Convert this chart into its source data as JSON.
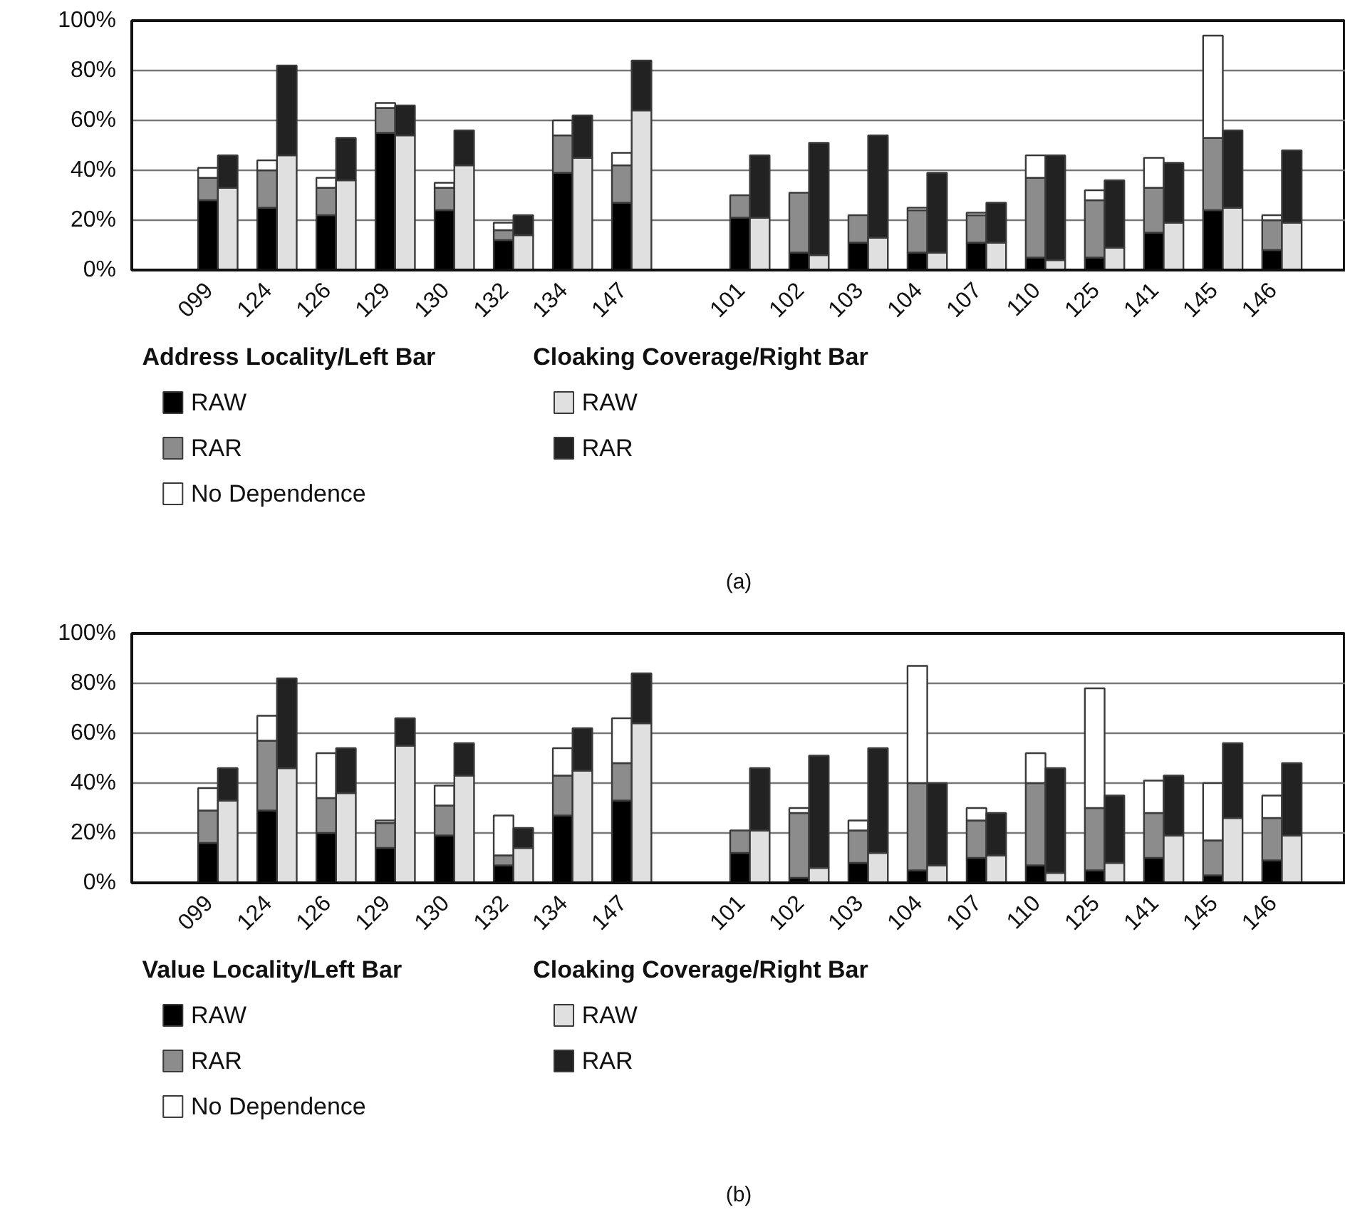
{
  "chart_data": [
    {
      "type": "bar",
      "stacked": true,
      "categories": [
        "099",
        null,
        null,
        "124",
        null,
        null,
        "126",
        null,
        null,
        "129",
        null,
        null,
        "130",
        null,
        null,
        "132",
        null,
        null,
        "134",
        null,
        null,
        "147",
        null,
        null,
        null,
        null,
        null,
        "101",
        null,
        null,
        "102",
        null,
        null,
        "103",
        null,
        null,
        "104",
        null,
        null,
        "107",
        null,
        null,
        "110",
        null,
        null,
        "125",
        null,
        null,
        "141",
        null,
        null,
        "145",
        null,
        null,
        "146",
        null,
        null
      ],
      "ylim": [
        0,
        100
      ],
      "yticks": [
        {
          "value": 0,
          "label": "0%"
        },
        {
          "value": 20,
          "label": "20%"
        },
        {
          "value": 40,
          "label": "40%"
        },
        {
          "value": 60,
          "label": "60%"
        },
        {
          "value": 80,
          "label": "80%"
        },
        {
          "value": 100,
          "label": "100%"
        }
      ],
      "grid": "y",
      "legend": "bottom",
      "legend_title": [
        "Address Locality/Left Bar",
        "Cloaking Coverage/Right Bar"
      ],
      "annotations": [
        "(a)"
      ],
      "series": [
        {
          "name": "RAW",
          "color": "#000000",
          "values": [
            28,
            null,
            null,
            25,
            null,
            null,
            22,
            null,
            null,
            55,
            null,
            null,
            24,
            null,
            null,
            12,
            null,
            null,
            39,
            null,
            null,
            27,
            null,
            null,
            null,
            null,
            null,
            21,
            null,
            null,
            7,
            null,
            null,
            11,
            null,
            null,
            7,
            null,
            null,
            11,
            null,
            null,
            5,
            null,
            null,
            5,
            null,
            null,
            15,
            null,
            null,
            24,
            null,
            null,
            8,
            null,
            null
          ]
        },
        {
          "name": "RAR",
          "color": "#8c8c8c",
          "values": [
            9,
            null,
            null,
            15,
            null,
            null,
            11,
            null,
            null,
            10,
            null,
            null,
            9,
            null,
            null,
            4,
            null,
            null,
            15,
            null,
            null,
            15,
            null,
            null,
            null,
            null,
            null,
            9,
            null,
            null,
            24,
            null,
            null,
            11,
            null,
            null,
            17,
            null,
            null,
            11,
            null,
            null,
            32,
            null,
            null,
            23,
            null,
            null,
            18,
            null,
            null,
            29,
            null,
            null,
            12,
            null,
            null
          ]
        },
        {
          "name": "No Dependence",
          "color": "#ffffff",
          "values": [
            4,
            null,
            null,
            4,
            null,
            null,
            4,
            null,
            null,
            2,
            null,
            null,
            2,
            null,
            null,
            3,
            null,
            null,
            6,
            null,
            null,
            5,
            null,
            null,
            null,
            null,
            null,
            null,
            null,
            null,
            null,
            null,
            null,
            null,
            null,
            null,
            1,
            null,
            null,
            1,
            null,
            null,
            9,
            null,
            null,
            4,
            null,
            null,
            12,
            null,
            null,
            41,
            null,
            null,
            2,
            null,
            null
          ]
        },
        {
          "name": "RAW",
          "color": "#e0e0e0",
          "values": [
            null,
            33,
            null,
            null,
            46,
            null,
            null,
            36,
            null,
            null,
            54,
            null,
            null,
            42,
            null,
            null,
            14,
            null,
            null,
            45,
            null,
            null,
            64,
            null,
            null,
            null,
            null,
            null,
            21,
            null,
            null,
            6,
            null,
            null,
            13,
            null,
            null,
            7,
            null,
            null,
            11,
            null,
            null,
            4,
            null,
            null,
            9,
            null,
            null,
            19,
            null,
            null,
            25,
            null,
            null,
            19,
            null
          ]
        },
        {
          "name": "RAR",
          "color": "#222222",
          "values": [
            null,
            13,
            null,
            null,
            36,
            null,
            null,
            17,
            null,
            null,
            12,
            null,
            null,
            14,
            null,
            null,
            8,
            null,
            null,
            17,
            null,
            null,
            20,
            null,
            null,
            null,
            null,
            null,
            25,
            null,
            null,
            45,
            null,
            null,
            41,
            null,
            null,
            32,
            null,
            null,
            16,
            null,
            null,
            42,
            null,
            null,
            27,
            null,
            null,
            24,
            null,
            null,
            31,
            null,
            null,
            29,
            null
          ]
        }
      ]
    },
    {
      "type": "bar",
      "stacked": true,
      "categories": [
        "099",
        null,
        null,
        "124",
        null,
        null,
        "126",
        null,
        null,
        "129",
        null,
        null,
        "130",
        null,
        null,
        "132",
        null,
        null,
        "134",
        null,
        null,
        "147",
        null,
        null,
        null,
        null,
        null,
        "101",
        null,
        null,
        "102",
        null,
        null,
        "103",
        null,
        null,
        "104",
        null,
        null,
        "107",
        null,
        null,
        "110",
        null,
        null,
        "125",
        null,
        null,
        "141",
        null,
        null,
        "145",
        null,
        null,
        "146",
        null,
        null
      ],
      "ylim": [
        0,
        100
      ],
      "yticks": [
        {
          "value": 0,
          "label": "0%"
        },
        {
          "value": 20,
          "label": "20%"
        },
        {
          "value": 40,
          "label": "40%"
        },
        {
          "value": 60,
          "label": "60%"
        },
        {
          "value": 80,
          "label": "80%"
        },
        {
          "value": 100,
          "label": "100%"
        }
      ],
      "grid": "y",
      "legend": "bottom",
      "legend_title": [
        "Value Locality/Left Bar",
        "Cloaking Coverage/Right Bar"
      ],
      "annotations": [
        "(b)"
      ],
      "series": [
        {
          "name": "RAW",
          "color": "#000000",
          "values": [
            16,
            null,
            null,
            29,
            null,
            null,
            20,
            null,
            null,
            14,
            null,
            null,
            19,
            null,
            null,
            7,
            null,
            null,
            27,
            null,
            null,
            33,
            null,
            null,
            null,
            null,
            null,
            12,
            null,
            null,
            2,
            null,
            null,
            8,
            null,
            null,
            5,
            null,
            null,
            10,
            null,
            null,
            7,
            null,
            null,
            5,
            null,
            null,
            10,
            null,
            null,
            3,
            null,
            null,
            9,
            null,
            null
          ]
        },
        {
          "name": "RAR",
          "color": "#8c8c8c",
          "values": [
            13,
            null,
            null,
            28,
            null,
            null,
            14,
            null,
            null,
            10,
            null,
            null,
            12,
            null,
            null,
            4,
            null,
            null,
            16,
            null,
            null,
            15,
            null,
            null,
            null,
            null,
            null,
            9,
            null,
            null,
            26,
            null,
            null,
            13,
            null,
            null,
            35,
            null,
            null,
            15,
            null,
            null,
            33,
            null,
            null,
            25,
            null,
            null,
            18,
            null,
            null,
            14,
            null,
            null,
            17,
            null,
            null
          ]
        },
        {
          "name": "No Dependence",
          "color": "#ffffff",
          "values": [
            9,
            null,
            null,
            10,
            null,
            null,
            18,
            null,
            null,
            1,
            null,
            null,
            8,
            null,
            null,
            16,
            null,
            null,
            11,
            null,
            null,
            18,
            null,
            null,
            null,
            null,
            null,
            null,
            null,
            null,
            2,
            null,
            null,
            4,
            null,
            null,
            47,
            null,
            null,
            5,
            null,
            null,
            12,
            null,
            null,
            48,
            null,
            null,
            13,
            null,
            null,
            23,
            null,
            null,
            9,
            null,
            null
          ]
        },
        {
          "name": "RAW",
          "color": "#e0e0e0",
          "values": [
            null,
            33,
            null,
            null,
            46,
            null,
            null,
            36,
            null,
            null,
            55,
            null,
            null,
            43,
            null,
            null,
            14,
            null,
            null,
            45,
            null,
            null,
            64,
            null,
            null,
            null,
            null,
            null,
            21,
            null,
            null,
            6,
            null,
            null,
            12,
            null,
            null,
            7,
            null,
            null,
            11,
            null,
            null,
            4,
            null,
            null,
            8,
            null,
            null,
            19,
            null,
            null,
            26,
            null,
            null,
            19,
            null
          ]
        },
        {
          "name": "RAR",
          "color": "#222222",
          "values": [
            null,
            13,
            null,
            null,
            36,
            null,
            null,
            18,
            null,
            null,
            11,
            null,
            null,
            13,
            null,
            null,
            8,
            null,
            null,
            17,
            null,
            null,
            20,
            null,
            null,
            null,
            null,
            null,
            25,
            null,
            null,
            45,
            null,
            null,
            42,
            null,
            null,
            33,
            null,
            null,
            17,
            null,
            null,
            42,
            null,
            null,
            27,
            null,
            null,
            24,
            null,
            null,
            30,
            null,
            null,
            29,
            null
          ]
        }
      ]
    }
  ]
}
